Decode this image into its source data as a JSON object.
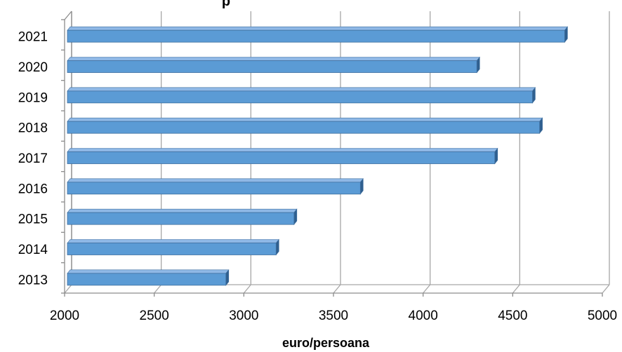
{
  "chart_data": {
    "type": "bar",
    "orientation": "horizontal",
    "style": "3d",
    "title": "p",
    "categories": [
      "2013",
      "2014",
      "2015",
      "2016",
      "2017",
      "2018",
      "2019",
      "2020",
      "2021"
    ],
    "series": [
      {
        "values": [
          2900,
          3180,
          3280,
          3650,
          4400,
          4650,
          4610,
          4300,
          4790
        ]
      }
    ],
    "xlabel": "euro/persoana",
    "ylabel": "",
    "xlim": [
      2000,
      5000
    ],
    "xticks": [
      "2000",
      "2500",
      "3000",
      "3500",
      "4000",
      "4500",
      "5000"
    ],
    "grid": "vertical",
    "legend": "none",
    "colors": {
      "bar_face": "#5b9bd5",
      "bar_top": "#8fb8e6",
      "bar_side": "#2f5f8f",
      "bar_outline": "#3f6f9f",
      "grid": "#a6a6a6",
      "axis": "#8c8c8c"
    }
  }
}
